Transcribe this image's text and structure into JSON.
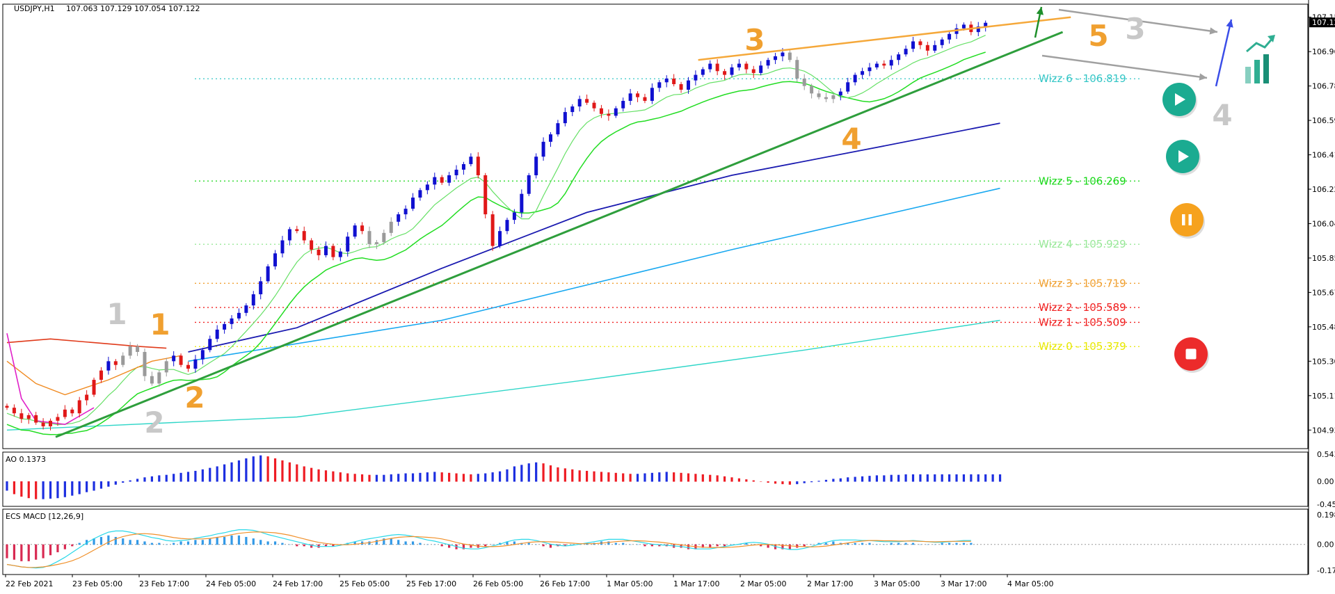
{
  "header": {
    "symbol": "USDJPY,H1",
    "ohlc": "107.063 107.129 107.054 107.122"
  },
  "chart_data": [
    {
      "type": "line",
      "title": "USDJPY,H1",
      "price_axis": {
        "ylim": [
          104.83,
          107.22
        ],
        "ticks": [
          "107.150",
          "106.965",
          "106.780",
          "106.595",
          "106.410",
          "106.225",
          "106.040",
          "105.855",
          "105.670",
          "105.485",
          "105.300",
          "105.115",
          "104.930"
        ],
        "current_price": "107.122"
      },
      "time_axis": {
        "labels": [
          "22 Feb 2021",
          "23 Feb 05:00",
          "23 Feb 17:00",
          "24 Feb 05:00",
          "24 Feb 17:00",
          "25 Feb 05:00",
          "25 Feb 17:00",
          "26 Feb 05:00",
          "26 Feb 17:00",
          "1 Mar 05:00",
          "1 Mar 17:00",
          "2 Mar 05:00",
          "2 Mar 17:00",
          "3 Mar 05:00",
          "3 Mar 17:00",
          "4 Mar 05:00"
        ]
      },
      "candles_close": [
        105.05,
        105.02,
        104.99,
        105.01,
        104.97,
        104.95,
        104.98,
        105.0,
        105.04,
        105.02,
        105.09,
        105.12,
        105.2,
        105.25,
        105.3,
        105.28,
        105.33,
        105.38,
        105.35,
        105.22,
        105.18,
        105.24,
        105.3,
        105.33,
        105.28,
        105.26,
        105.31,
        105.36,
        105.42,
        105.47,
        105.5,
        105.53,
        105.56,
        105.6,
        105.66,
        105.73,
        105.81,
        105.88,
        105.95,
        106.01,
        106.0,
        105.95,
        105.9,
        105.87,
        105.92,
        105.86,
        105.89,
        105.97,
        106.03,
        106.0,
        105.93,
        105.94,
        105.99,
        106.05,
        106.09,
        106.12,
        106.18,
        106.22,
        106.25,
        106.29,
        106.26,
        106.3,
        106.33,
        106.36,
        106.4,
        106.3,
        106.09,
        105.92,
        106.0,
        106.06,
        106.1,
        106.2,
        106.3,
        106.4,
        106.48,
        106.52,
        106.58,
        106.64,
        106.67,
        106.71,
        106.69,
        106.66,
        106.63,
        106.62,
        106.66,
        106.7,
        106.74,
        106.72,
        106.7,
        106.77,
        106.8,
        106.82,
        106.79,
        106.76,
        106.81,
        106.84,
        106.87,
        106.9,
        106.86,
        106.84,
        106.88,
        106.9,
        106.87,
        106.85,
        106.89,
        106.92,
        106.94,
        106.96,
        106.92,
        106.82,
        106.78,
        106.74,
        106.72,
        106.71,
        106.73,
        106.75,
        106.8,
        106.84,
        106.86,
        106.88,
        106.9,
        106.89,
        106.92,
        106.95,
        106.98,
        107.02,
        107.0,
        106.97,
        107.0,
        107.03,
        107.06,
        107.09,
        107.11,
        107.07,
        107.1,
        107.12
      ],
      "wizz_levels": [
        {
          "label": "Wizz 6 - 106.819",
          "value": 106.819,
          "color": "#34c6c6"
        },
        {
          "label": "Wizz 5 - 106.269",
          "value": 106.269,
          "color": "#18d818"
        },
        {
          "label": "Wizz 4 - 105.929",
          "value": 105.929,
          "color": "#98e898"
        },
        {
          "label": "Wizz 3 - 105.719",
          "value": 105.719,
          "color": "#f0a030"
        },
        {
          "label": "Wizz 2 - 105.589",
          "value": 105.589,
          "color": "#f02020"
        },
        {
          "label": "Wizz 1 - 105.509",
          "value": 105.509,
          "color": "#f02020"
        },
        {
          "label": "Wizz 0 - 105.379",
          "value": 105.379,
          "color": "#e8e800"
        }
      ],
      "trendline_lower": [
        [
          0,
          104.9
        ],
        [
          137,
          107.04
        ]
      ],
      "trendline_upper": [
        [
          92,
          106.92
        ],
        [
          141,
          107.15
        ]
      ],
      "ma_dark_blue": [
        [
          25,
          105.35
        ],
        [
          40,
          105.48
        ],
        [
          60,
          105.8
        ],
        [
          80,
          106.1
        ],
        [
          100,
          106.3
        ],
        [
          120,
          106.45
        ],
        [
          137,
          106.58
        ]
      ],
      "ma_light_blue": [
        [
          25,
          105.3
        ],
        [
          60,
          105.52
        ],
        [
          100,
          105.9
        ],
        [
          137,
          106.23
        ]
      ],
      "ma_cyan": [
        [
          0,
          104.93
        ],
        [
          40,
          105.0
        ],
        [
          80,
          105.2
        ],
        [
          110,
          105.36
        ],
        [
          137,
          105.52
        ]
      ],
      "wave_labels": [
        {
          "text": "1",
          "candle": 15,
          "price": 105.55,
          "color": "#c8c8c8"
        },
        {
          "text": "1",
          "candle": 21,
          "price": 105.5,
          "color": "#f0a030"
        },
        {
          "text": "2",
          "candle": 20,
          "price": 104.95,
          "color": "#c8c8c8"
        },
        {
          "text": "2",
          "candle": 25,
          "price": 105.1,
          "color": "#f0a030"
        },
        {
          "text": "3",
          "candle": 101,
          "price": 107.05,
          "color": "#f0a030"
        },
        {
          "text": "4",
          "candle": 114,
          "price": 106.49,
          "color": "#f0a030"
        },
        {
          "text": "5",
          "candle": 148,
          "price": 107.02,
          "color": "#f0a030"
        },
        {
          "text": "3",
          "candle": 154,
          "price": 107.06,
          "color": "#c8c8c8"
        },
        {
          "text": "4",
          "candle": 166,
          "price": 106.6,
          "color": "#c8c8c8"
        }
      ],
      "grid": false
    },
    {
      "type": "bar",
      "title": "AO 0.1373",
      "ylim": [
        -0.4597,
        0.5438
      ],
      "ticks": [
        "0.5438",
        "0.00",
        "-0.4597"
      ],
      "values": [
        -0.18,
        -0.25,
        -0.3,
        -0.33,
        -0.35,
        -0.35,
        -0.34,
        -0.33,
        -0.31,
        -0.28,
        -0.25,
        -0.21,
        -0.18,
        -0.14,
        -0.1,
        -0.06,
        -0.02,
        0.02,
        0.05,
        0.08,
        0.1,
        0.12,
        0.13,
        0.15,
        0.17,
        0.19,
        0.21,
        0.24,
        0.27,
        0.3,
        0.34,
        0.38,
        0.42,
        0.46,
        0.5,
        0.52,
        0.5,
        0.46,
        0.42,
        0.38,
        0.34,
        0.3,
        0.27,
        0.24,
        0.22,
        0.2,
        0.18,
        0.16,
        0.15,
        0.14,
        0.13,
        0.13,
        0.13,
        0.14,
        0.15,
        0.16,
        0.16,
        0.17,
        0.18,
        0.19,
        0.18,
        0.17,
        0.16,
        0.15,
        0.14,
        0.15,
        0.16,
        0.18,
        0.2,
        0.24,
        0.3,
        0.33,
        0.36,
        0.38,
        0.36,
        0.32,
        0.28,
        0.26,
        0.24,
        0.22,
        0.21,
        0.2,
        0.19,
        0.18,
        0.17,
        0.16,
        0.15,
        0.15,
        0.16,
        0.17,
        0.18,
        0.19,
        0.18,
        0.17,
        0.16,
        0.15,
        0.14,
        0.13,
        0.12,
        0.1,
        0.08,
        0.06,
        0.04,
        0.02,
        0.0,
        -0.02,
        -0.04,
        -0.05,
        -0.06,
        -0.05,
        -0.03,
        -0.01,
        0.01,
        0.03,
        0.05,
        0.06,
        0.08,
        0.09,
        0.1,
        0.11,
        0.12,
        0.12,
        0.13,
        0.13,
        0.14,
        0.14,
        0.14,
        0.14,
        0.14,
        0.14,
        0.14,
        0.14,
        0.14,
        0.14,
        0.14,
        0.14,
        0.14,
        0.14
      ]
    },
    {
      "type": "bar",
      "title": "ECS MACD [12,26,9]",
      "ylim": [
        -0.17342,
        0.19865
      ],
      "ticks": [
        "0.19865",
        "0.00",
        "-0.17342"
      ],
      "values": [
        -0.09,
        -0.1,
        -0.11,
        -0.11,
        -0.1,
        -0.09,
        -0.07,
        -0.05,
        -0.03,
        -0.01,
        0.01,
        0.03,
        0.04,
        0.05,
        0.06,
        0.05,
        0.04,
        0.03,
        0.03,
        0.02,
        0.01,
        0.01,
        0.0,
        0.01,
        0.02,
        0.02,
        0.03,
        0.03,
        0.04,
        0.05,
        0.05,
        0.06,
        0.06,
        0.05,
        0.04,
        0.03,
        0.02,
        0.02,
        0.01,
        0.0,
        -0.01,
        -0.01,
        -0.02,
        -0.02,
        -0.01,
        -0.01,
        0.0,
        0.01,
        0.02,
        0.02,
        0.02,
        0.03,
        0.04,
        0.04,
        0.03,
        0.02,
        0.02,
        0.01,
        0.0,
        0.0,
        -0.01,
        -0.02,
        -0.03,
        -0.03,
        -0.02,
        -0.02,
        -0.01,
        0.0,
        0.01,
        0.02,
        0.02,
        0.01,
        0.01,
        0.0,
        -0.01,
        -0.02,
        -0.01,
        -0.01,
        0.0,
        0.0,
        0.01,
        0.01,
        0.02,
        0.02,
        0.01,
        0.01,
        0.0,
        0.0,
        -0.01,
        -0.01,
        -0.01,
        -0.01,
        -0.02,
        -0.02,
        -0.03,
        -0.03,
        -0.02,
        -0.02,
        -0.01,
        -0.01,
        0.0,
        0.0,
        0.01,
        0.0,
        -0.01,
        -0.02,
        -0.03,
        -0.03,
        -0.03,
        -0.02,
        -0.01,
        0.0,
        0.01,
        0.01,
        0.02,
        0.01,
        0.01,
        0.01,
        0.01,
        0.01,
        0.0,
        0.0,
        0.01,
        0.01,
        0.01,
        0.01,
        0.0,
        0.0,
        0.0,
        0.01,
        0.01,
        0.01,
        0.01,
        0.01
      ]
    }
  ],
  "icons": {
    "play_1": "play-icon",
    "play_2": "play-icon",
    "pause": "pause-icon",
    "stop": "stop-icon",
    "trend_up_chart": "trend-up-icon"
  },
  "colors": {
    "bull": "#1010d0",
    "bear": "#e01818",
    "neutral": "#9a9a9a",
    "trendline": "#2e9e3c",
    "wave_orange": "#f0a030",
    "wave_gray": "#c8c8c8",
    "ao_up": "#1d2fe0",
    "ao_down": "#ee1c24",
    "macd_pos": "#3399e6",
    "macd_neg": "#d82a52",
    "play": "#1bab91",
    "pause": "#f6a21e",
    "stop": "#ec2b2b"
  }
}
